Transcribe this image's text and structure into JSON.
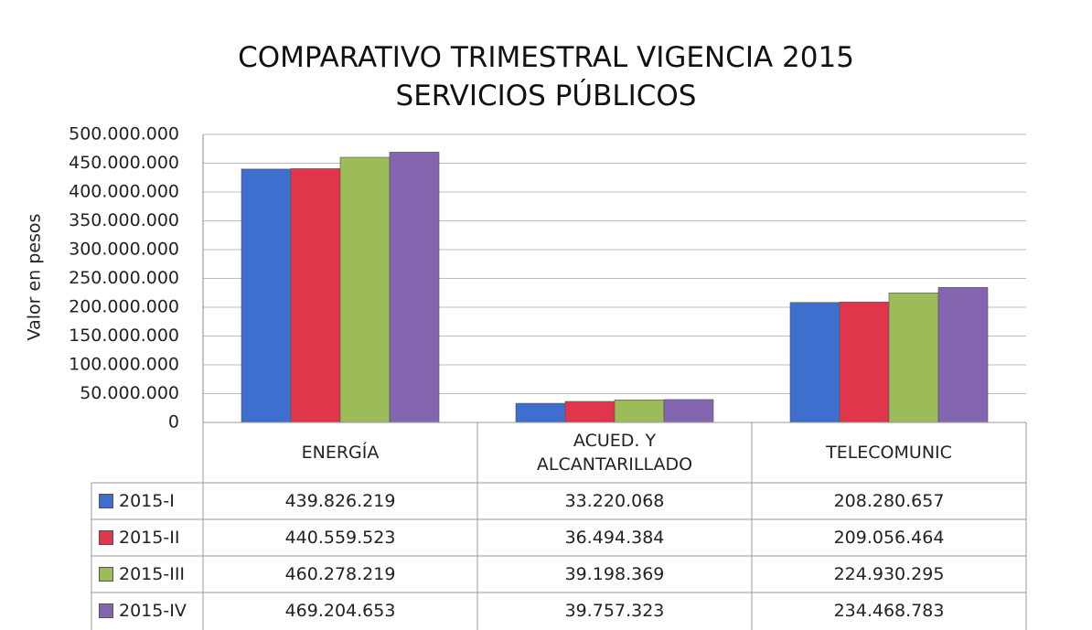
{
  "chart_data": {
    "type": "bar",
    "title": "COMPARATIVO TRIMESTRAL VIGENCIA 2015\nSERVICIOS PÚBLICOS",
    "y_label": "Valor en pesos",
    "categories": [
      "ENERGÍA",
      "ACUED. Y\nALCANTARILLADO",
      "TELECOMUNIC"
    ],
    "series": [
      {
        "name": "2015-I",
        "color": "#3e6fcf",
        "values": [
          439826219,
          33220068,
          208280657
        ],
        "value_labels": [
          "439.826.219",
          "33.220.068",
          "208.280.657"
        ]
      },
      {
        "name": "2015-II",
        "color": "#e0364b",
        "values": [
          440559523,
          36494384,
          209056464
        ],
        "value_labels": [
          "440.559.523",
          "36.494.384",
          "209.056.464"
        ]
      },
      {
        "name": "2015-III",
        "color": "#9cbb59",
        "values": [
          460278219,
          39198369,
          224930295
        ],
        "value_labels": [
          "460.278.219",
          "39.198.369",
          "224.930.295"
        ]
      },
      {
        "name": "2015-IV",
        "color": "#8466b0",
        "values": [
          469204653,
          39757323,
          234468783
        ],
        "value_labels": [
          "469.204.653",
          "39.757.323",
          "234.468.783"
        ]
      }
    ],
    "ylim": [
      0,
      500000000
    ],
    "yticks": [
      0,
      {
        "value": 50000000,
        "label": "50.000.000"
      },
      {
        "value": 100000000,
        "label": "100.000.000"
      },
      {
        "value": 150000000,
        "label": "150.000.000"
      },
      {
        "value": 200000000,
        "label": "200.000.000"
      },
      {
        "value": 250000000,
        "label": "250.000.000"
      },
      {
        "value": 300000000,
        "label": "300.000.000"
      },
      {
        "value": 350000000,
        "label": "350.000.000"
      },
      {
        "value": 400000000,
        "label": "400.000.000"
      },
      {
        "value": 450000000,
        "label": "450.000.000"
      },
      {
        "value": 500000000,
        "label": "500.000.000"
      }
    ],
    "grid": true
  }
}
